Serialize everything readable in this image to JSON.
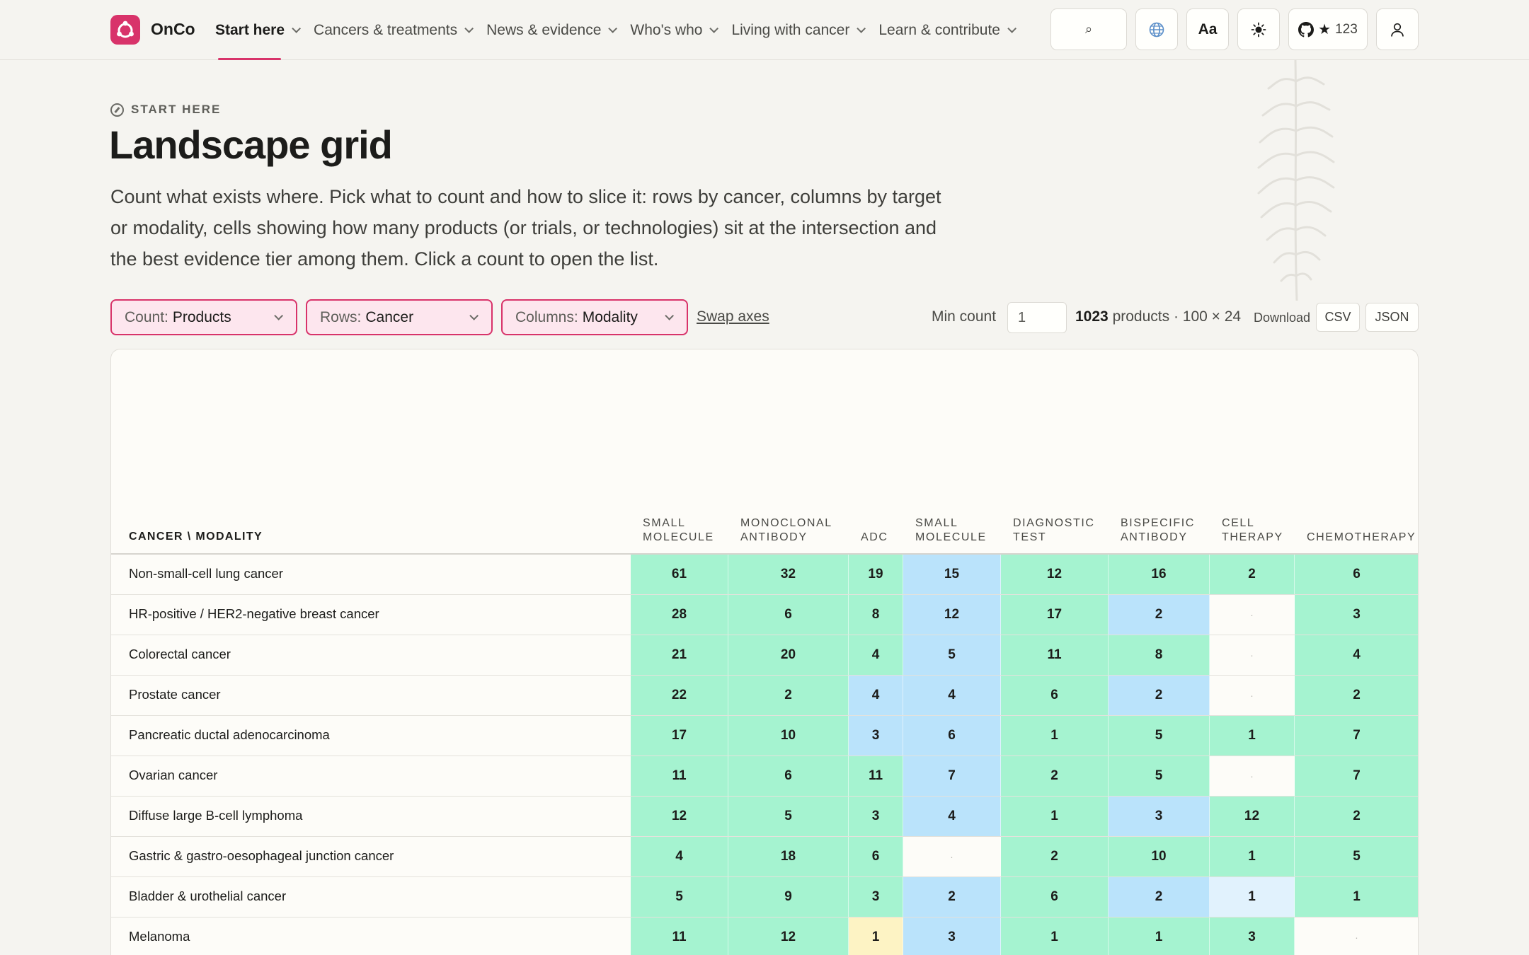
{
  "header": {
    "brand": "OnCo",
    "nav": [
      {
        "label": "Start here",
        "active": true
      },
      {
        "label": "Cancers & treatments",
        "active": false
      },
      {
        "label": "News & evidence",
        "active": false
      },
      {
        "label": "Who's who",
        "active": false
      },
      {
        "label": "Living with cancer",
        "active": false
      },
      {
        "label": "Learn & contribute",
        "active": false
      }
    ],
    "search_icon": "⌕",
    "language_icon": "globe-icon",
    "font_button": "Aa",
    "theme_icon": "sun-icon",
    "github_stars": "123",
    "account_icon": "user-icon"
  },
  "page": {
    "eyebrow": "START HERE",
    "title": "Landscape grid",
    "intro": "Count what exists where. Pick what to count and how to slice it: rows by cancer, columns by target or modality, cells showing how many products (or trials, or technologies) sit at the intersection and the best evidence tier among them. Click a count to open the list."
  },
  "controls": {
    "count": {
      "prefix": "Count:",
      "value": "Products"
    },
    "rows": {
      "prefix": "Rows:",
      "value": "Cancer"
    },
    "columns": {
      "prefix": "Columns:",
      "value": "Modality"
    },
    "swap": "Swap axes",
    "min_count_label": "Min count",
    "min_count_value": "1",
    "total": "1023",
    "summary_rest": "products · 100 × 24",
    "download_label": "Download",
    "csv": "CSV",
    "json": "JSON"
  },
  "grid": {
    "corner": "CANCER \\ MODALITY",
    "columns": [
      "SMALL MOLECULE",
      "MONOCLONAL ANTIBODY",
      "ADC",
      "SMALL MOLECULE",
      "DIAGNOSTIC TEST",
      "BISPECIFIC ANTIBODY",
      "CELL THERAPY",
      "CHEMOTHERAPY"
    ],
    "empty_mark": "·",
    "colors": {
      "green": "#a5f3d0",
      "blue": "#bae3fb",
      "pale_blue": "#e1f2fd",
      "yellow": "#fdf3c4",
      "empty": "#fdfcf8"
    },
    "rows": [
      {
        "label": "Non-small-cell lung cancer",
        "cells": [
          [
            61,
            "green"
          ],
          [
            32,
            "green"
          ],
          [
            19,
            "green"
          ],
          [
            15,
            "blue"
          ],
          [
            12,
            "green"
          ],
          [
            16,
            "green"
          ],
          [
            2,
            "green"
          ],
          [
            6,
            "green"
          ]
        ]
      },
      {
        "label": "HR-positive / HER2-negative breast cancer",
        "cells": [
          [
            28,
            "green"
          ],
          [
            6,
            "green"
          ],
          [
            8,
            "green"
          ],
          [
            12,
            "blue"
          ],
          [
            17,
            "green"
          ],
          [
            2,
            "blue"
          ],
          [
            null,
            "empty"
          ],
          [
            3,
            "green"
          ]
        ]
      },
      {
        "label": "Colorectal cancer",
        "cells": [
          [
            21,
            "green"
          ],
          [
            20,
            "green"
          ],
          [
            4,
            "green"
          ],
          [
            5,
            "blue"
          ],
          [
            11,
            "green"
          ],
          [
            8,
            "green"
          ],
          [
            null,
            "empty"
          ],
          [
            4,
            "green"
          ]
        ]
      },
      {
        "label": "Prostate cancer",
        "cells": [
          [
            22,
            "green"
          ],
          [
            2,
            "green"
          ],
          [
            4,
            "blue"
          ],
          [
            4,
            "blue"
          ],
          [
            6,
            "green"
          ],
          [
            2,
            "blue"
          ],
          [
            null,
            "empty"
          ],
          [
            2,
            "green"
          ]
        ]
      },
      {
        "label": "Pancreatic ductal adenocarcinoma",
        "cells": [
          [
            17,
            "green"
          ],
          [
            10,
            "green"
          ],
          [
            3,
            "blue"
          ],
          [
            6,
            "blue"
          ],
          [
            1,
            "green"
          ],
          [
            5,
            "green"
          ],
          [
            1,
            "green"
          ],
          [
            7,
            "green"
          ]
        ]
      },
      {
        "label": "Ovarian cancer",
        "cells": [
          [
            11,
            "green"
          ],
          [
            6,
            "green"
          ],
          [
            11,
            "green"
          ],
          [
            7,
            "blue"
          ],
          [
            2,
            "green"
          ],
          [
            5,
            "green"
          ],
          [
            null,
            "empty"
          ],
          [
            7,
            "green"
          ]
        ]
      },
      {
        "label": "Diffuse large B-cell lymphoma",
        "cells": [
          [
            12,
            "green"
          ],
          [
            5,
            "green"
          ],
          [
            3,
            "green"
          ],
          [
            4,
            "blue"
          ],
          [
            1,
            "green"
          ],
          [
            3,
            "blue"
          ],
          [
            12,
            "green"
          ],
          [
            2,
            "green"
          ]
        ]
      },
      {
        "label": "Gastric & gastro-oesophageal junction cancer",
        "cells": [
          [
            4,
            "green"
          ],
          [
            18,
            "green"
          ],
          [
            6,
            "green"
          ],
          [
            null,
            "empty"
          ],
          [
            2,
            "green"
          ],
          [
            10,
            "green"
          ],
          [
            1,
            "green"
          ],
          [
            5,
            "green"
          ]
        ]
      },
      {
        "label": "Bladder & urothelial cancer",
        "cells": [
          [
            5,
            "green"
          ],
          [
            9,
            "green"
          ],
          [
            3,
            "green"
          ],
          [
            2,
            "blue"
          ],
          [
            6,
            "green"
          ],
          [
            2,
            "blue"
          ],
          [
            1,
            "pale_blue"
          ],
          [
            1,
            "green"
          ]
        ]
      },
      {
        "label": "Melanoma",
        "cells": [
          [
            11,
            "green"
          ],
          [
            12,
            "green"
          ],
          [
            1,
            "yellow"
          ],
          [
            3,
            "blue"
          ],
          [
            1,
            "green"
          ],
          [
            1,
            "green"
          ],
          [
            3,
            "green"
          ],
          [
            null,
            "empty"
          ]
        ]
      }
    ]
  }
}
